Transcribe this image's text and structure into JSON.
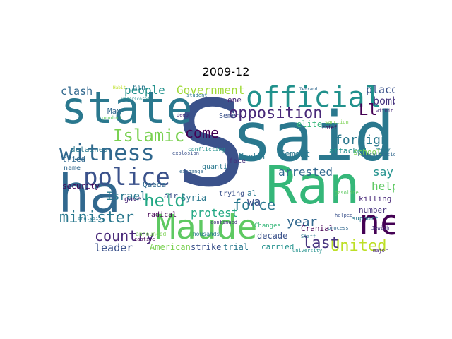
{
  "title": "2009-12",
  "words": [
    {
      "text": "said",
      "color": "#2a788e"
    },
    {
      "text": "S",
      "color": "#3b528b"
    },
    {
      "text": "Ran",
      "color": "#35b779"
    },
    {
      "text": "state",
      "color": "#2a788e"
    },
    {
      "text": "Maude",
      "color": "#5ec962"
    },
    {
      "text": "ha",
      "color": "#31688e"
    },
    {
      "text": "new",
      "color": "#440154"
    },
    {
      "text": "official",
      "color": "#21918c"
    },
    {
      "text": "police",
      "color": "#3b528b"
    },
    {
      "text": "witness",
      "color": "#31688e"
    },
    {
      "text": "opposition",
      "color": "#482878"
    },
    {
      "text": "Islamic",
      "color": "#7ad151"
    },
    {
      "text": "minister",
      "color": "#2a788e"
    },
    {
      "text": "United",
      "color": "#bddf26"
    },
    {
      "text": "country",
      "color": "#482878"
    },
    {
      "text": "held",
      "color": "#22a884"
    },
    {
      "text": "force",
      "color": "#2a788e"
    },
    {
      "text": "come",
      "color": "#440154"
    },
    {
      "text": "people",
      "color": "#21918c"
    },
    {
      "text": "Government",
      "color": "#a0da39"
    },
    {
      "text": "clash",
      "color": "#31688e"
    },
    {
      "text": "last",
      "color": "#46337e"
    },
    {
      "text": "protest",
      "color": "#22a884"
    },
    {
      "text": "Israel",
      "color": "#2a788e"
    },
    {
      "text": "leader",
      "color": "#3b528b"
    },
    {
      "text": "year",
      "color": "#31688e"
    },
    {
      "text": "foreign",
      "color": "#2a788e"
    },
    {
      "text": "arrested",
      "color": "#31688e"
    },
    {
      "text": "say",
      "color": "#21918c"
    },
    {
      "text": "place",
      "color": "#3b528b"
    },
    {
      "text": "bomb",
      "color": "#46337e"
    },
    {
      "text": "help",
      "color": "#5ec962"
    },
    {
      "text": "Ll",
      "color": "#440154"
    },
    {
      "text": "elite",
      "color": "#35b779"
    },
    {
      "text": "wa",
      "color": "#3b528b"
    },
    {
      "text": "Cement",
      "color": "#2a788e"
    },
    {
      "text": "attacked",
      "color": "#21918c"
    },
    {
      "text": "killing",
      "color": "#482878"
    },
    {
      "text": "Qaeda",
      "color": "#31688e"
    },
    {
      "text": "Syria",
      "color": "#2a788e"
    },
    {
      "text": "American",
      "color": "#7ad151"
    },
    {
      "text": "strike",
      "color": "#3b528b"
    },
    {
      "text": "trial",
      "color": "#2a788e"
    },
    {
      "text": "carried",
      "color": "#21918c"
    },
    {
      "text": "decade",
      "color": "#3b528b"
    },
    {
      "text": "Cranial",
      "color": "#440154"
    },
    {
      "text": "number",
      "color": "#46337e"
    },
    {
      "text": "support",
      "color": "#2a788e"
    },
    {
      "text": "school",
      "color": "#7ad151"
    },
    {
      "text": "security",
      "color": "#440154"
    },
    {
      "text": "tried",
      "color": "#31688e"
    },
    {
      "text": "detained",
      "color": "#2a788e"
    },
    {
      "text": "May",
      "color": "#31688e"
    },
    {
      "text": "one",
      "color": "#482878"
    },
    {
      "text": "Laden",
      "color": "#2a788e"
    },
    {
      "text": "Semen",
      "color": "#3b528b"
    },
    {
      "text": "quanti",
      "color": "#2a788e"
    },
    {
      "text": "radical",
      "color": "#440154"
    },
    {
      "text": "air",
      "color": "#3b528b"
    },
    {
      "text": "al",
      "color": "#2a788e"
    },
    {
      "text": "trying",
      "color": "#3b528b"
    },
    {
      "text": "name",
      "color": "#31688e"
    },
    {
      "text": "Changes",
      "color": "#35b779"
    },
    {
      "text": "gave",
      "color": "#482878"
    },
    {
      "text": "bin",
      "color": "#2a788e"
    },
    {
      "text": "face",
      "color": "#46337e"
    },
    {
      "text": "conflicting",
      "color": "#21918c"
    },
    {
      "text": "announced",
      "color": "#7ad151"
    },
    {
      "text": "Thousands",
      "color": "#2a788e"
    },
    {
      "text": "process",
      "color": "#31688e"
    },
    {
      "text": "university",
      "color": "#21918c"
    },
    {
      "text": "explosion",
      "color": "#3b528b"
    },
    {
      "text": "deep",
      "color": "#482878"
    },
    {
      "text": "student",
      "color": "#2a788e"
    },
    {
      "text": "exchange",
      "color": "#31688e"
    },
    {
      "text": "continued",
      "color": "#46337e"
    },
    {
      "text": "captive",
      "color": "#440154"
    },
    {
      "text": "analysis",
      "color": "#2a788e"
    },
    {
      "text": "product",
      "color": "#5ec962"
    },
    {
      "text": "Jewish",
      "color": "#46337e"
    },
    {
      "text": "major",
      "color": "#482878"
    },
    {
      "text": "helped",
      "color": "#3b528b"
    },
    {
      "text": "radicalization",
      "color": "#31688e"
    },
    {
      "text": "every",
      "color": "#2a788e"
    },
    {
      "text": "within",
      "color": "#482878"
    },
    {
      "text": "Staff",
      "color": "#2a788e"
    },
    {
      "text": "chief",
      "color": "#440154"
    },
    {
      "text": "Tehrand",
      "color": "#31688e"
    },
    {
      "text": "underscored",
      "color": "#21918c"
    },
    {
      "text": "Habit",
      "color": "#bddf26"
    },
    {
      "text": "gasoline",
      "color": "#5ec962"
    },
    {
      "text": "sanction",
      "color": "#7ad151"
    }
  ]
}
